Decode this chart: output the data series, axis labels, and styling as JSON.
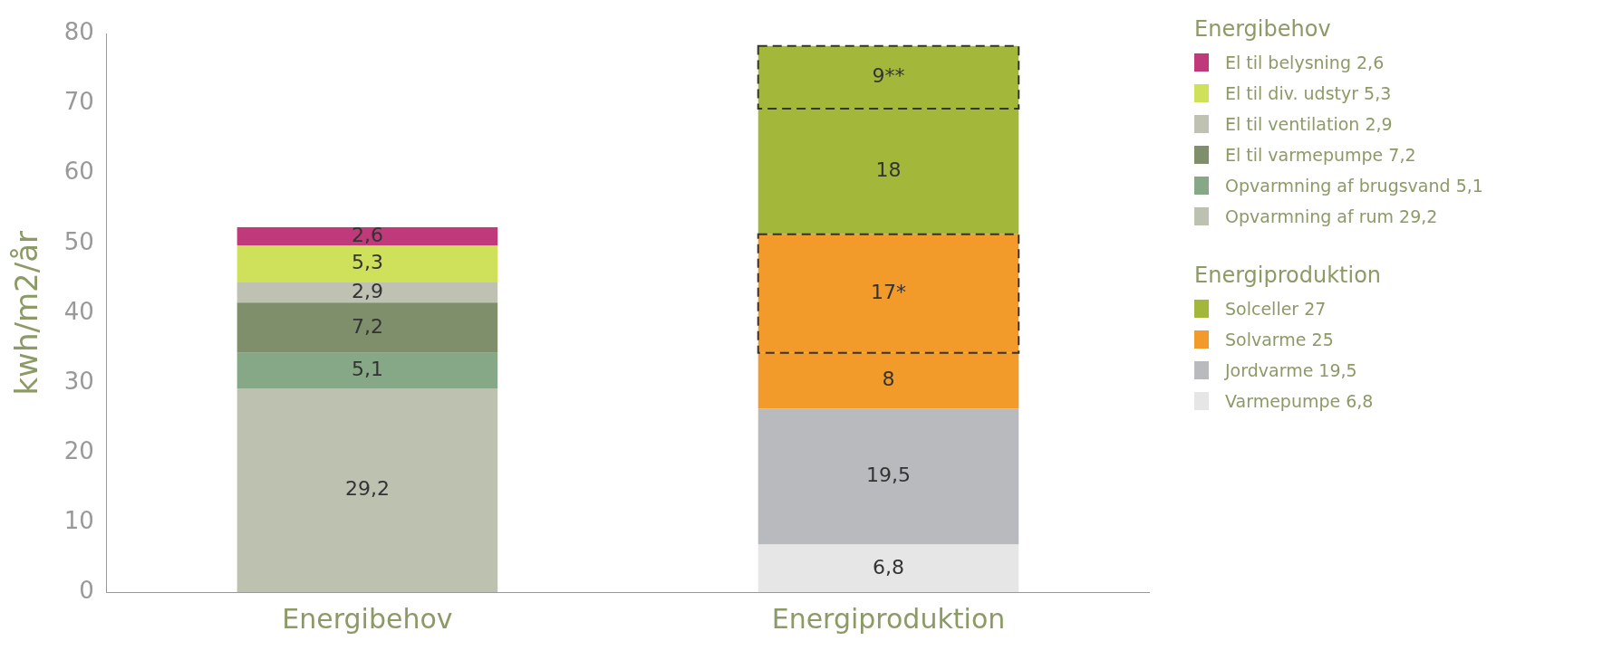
{
  "chart_data": {
    "type": "bar",
    "stacked": true,
    "ylabel": "kwh/m2/år",
    "categories": [
      "Energibehov",
      "Energiproduktion"
    ],
    "ylim": [
      0,
      80
    ],
    "yticks": [
      0,
      10,
      20,
      30,
      40,
      50,
      60,
      70,
      80
    ],
    "grid": false,
    "legend": "right",
    "series": [
      {
        "name": "Opvarmning af rum 29,2",
        "color": "#bdc2b0",
        "values": [
          29.2,
          null
        ],
        "value_labels": [
          "29,2",
          null
        ]
      },
      {
        "name": "Opvarmning af brugsvand 5,1",
        "color": "#86a886",
        "values": [
          5.1,
          null
        ],
        "value_labels": [
          "5,1",
          null
        ]
      },
      {
        "name": "El til varmepumpe 7,2",
        "color": "#7f8f6c",
        "values": [
          7.2,
          null
        ],
        "value_labels": [
          "7,2",
          null
        ]
      },
      {
        "name": "El til ventilation 2,9",
        "color": "#bfc2b3",
        "values": [
          2.9,
          null
        ],
        "value_labels": [
          "2,9",
          null
        ]
      },
      {
        "name": "El til div. udstyr 5,3",
        "color": "#cfe05a",
        "values": [
          5.3,
          null
        ],
        "value_labels": [
          "5,3",
          null
        ]
      },
      {
        "name": "El til belysning 2,6",
        "color": "#c0397a",
        "values": [
          2.6,
          null
        ],
        "value_labels": [
          "2,6",
          null
        ]
      },
      {
        "name": "Varmepumpe 6,8",
        "color": "#e6e6e6",
        "values": [
          null,
          6.8
        ],
        "value_labels": [
          null,
          "6,8"
        ]
      },
      {
        "name": "Jordvarme 19,5",
        "color": "#b8babd",
        "values": [
          null,
          19.5
        ],
        "value_labels": [
          null,
          "19,5"
        ]
      },
      {
        "name": "Solvarme 25",
        "color": "#f29a2a",
        "values": [
          null,
          8
        ],
        "value_labels": [
          null,
          "8"
        ]
      },
      {
        "color": "#f29a2a",
        "values": [
          null,
          17
        ],
        "value_labels": [
          null,
          "17*"
        ],
        "line_style": "dashed"
      },
      {
        "name": "Solceller 27",
        "color": "#a3b83a",
        "values": [
          null,
          18
        ],
        "value_labels": [
          null,
          "18"
        ]
      },
      {
        "color": "#a3b83a",
        "values": [
          null,
          9
        ],
        "value_labels": [
          null,
          "9**"
        ],
        "line_style": "dashed"
      }
    ]
  }
}
